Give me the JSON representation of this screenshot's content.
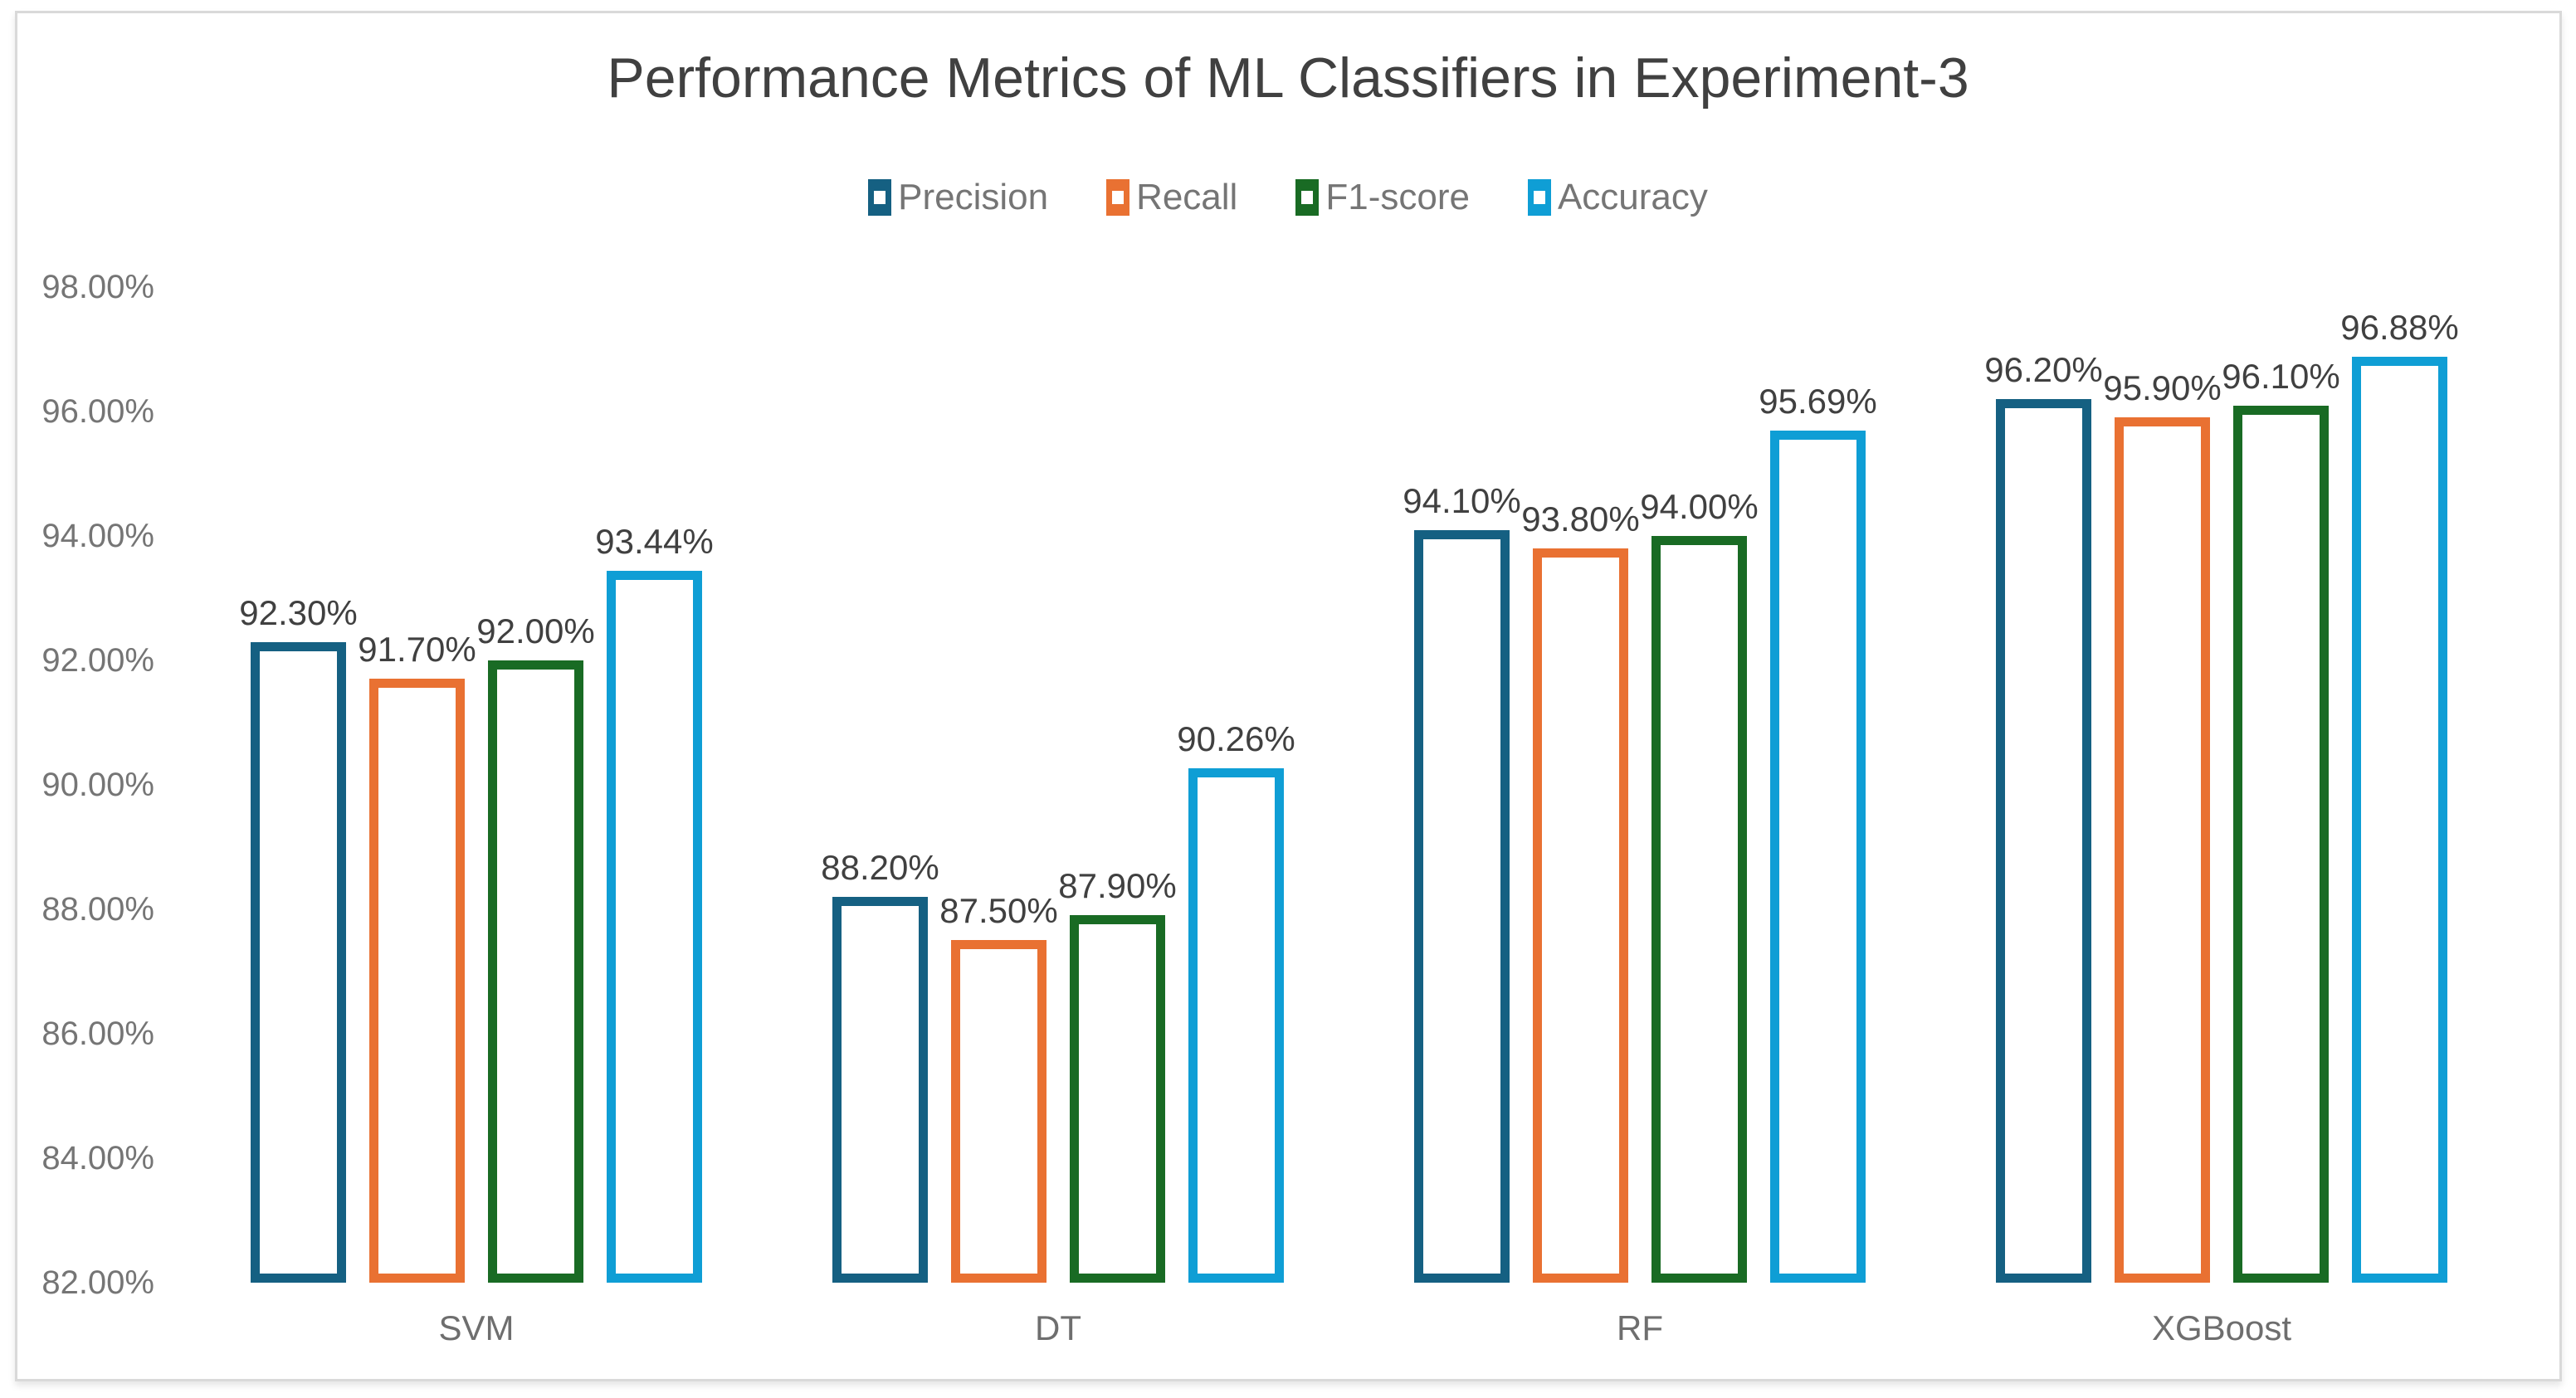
{
  "title": "Performance Metrics of ML Classifiers in Experiment-3",
  "colors": {
    "precision": "#156082",
    "recall": "#E97132",
    "f1_score": "#196B24",
    "accuracy": "#0F9ED5",
    "title_text": "#404040",
    "axis_text": "#757575",
    "value_text": "#404040",
    "frame_border": "#D9D9D9",
    "bar_fill": "#FFFFFF"
  },
  "chart_data": {
    "type": "bar",
    "title": "Performance Metrics of ML Classifiers in Experiment-3",
    "xlabel": "",
    "ylabel": "",
    "categories": [
      "SVM",
      "DT",
      "RF",
      "XGBoost"
    ],
    "series": [
      {
        "name": "Precision",
        "color": "#156082",
        "values": [
          92.3,
          88.2,
          94.1,
          96.2
        ],
        "labels": [
          "92.30%",
          "88.20%",
          "94.10%",
          "96.20%"
        ]
      },
      {
        "name": "Recall",
        "color": "#E97132",
        "values": [
          91.7,
          87.5,
          93.8,
          95.9
        ],
        "labels": [
          "91.70%",
          "87.50%",
          "93.80%",
          "95.90%"
        ]
      },
      {
        "name": "F1-score",
        "color": "#196B24",
        "values": [
          92.0,
          87.9,
          94.0,
          96.1
        ],
        "labels": [
          "92.00%",
          "87.90%",
          "94.00%",
          "96.10%"
        ]
      },
      {
        "name": "Accuracy",
        "color": "#0F9ED5",
        "values": [
          93.44,
          90.26,
          95.69,
          96.88
        ],
        "labels": [
          "93.44%",
          "90.26%",
          "95.69%",
          "96.88%"
        ]
      }
    ],
    "ylim": [
      82,
      98
    ],
    "ytick_step": 2,
    "yticks": [
      "98.00%",
      "96.00%",
      "94.00%",
      "92.00%",
      "90.00%",
      "88.00%",
      "86.00%",
      "84.00%",
      "82.00%"
    ],
    "grid": false,
    "legend_position": "top-center",
    "bar_style": "outlined-hollow",
    "data_labels": "outside-end"
  }
}
